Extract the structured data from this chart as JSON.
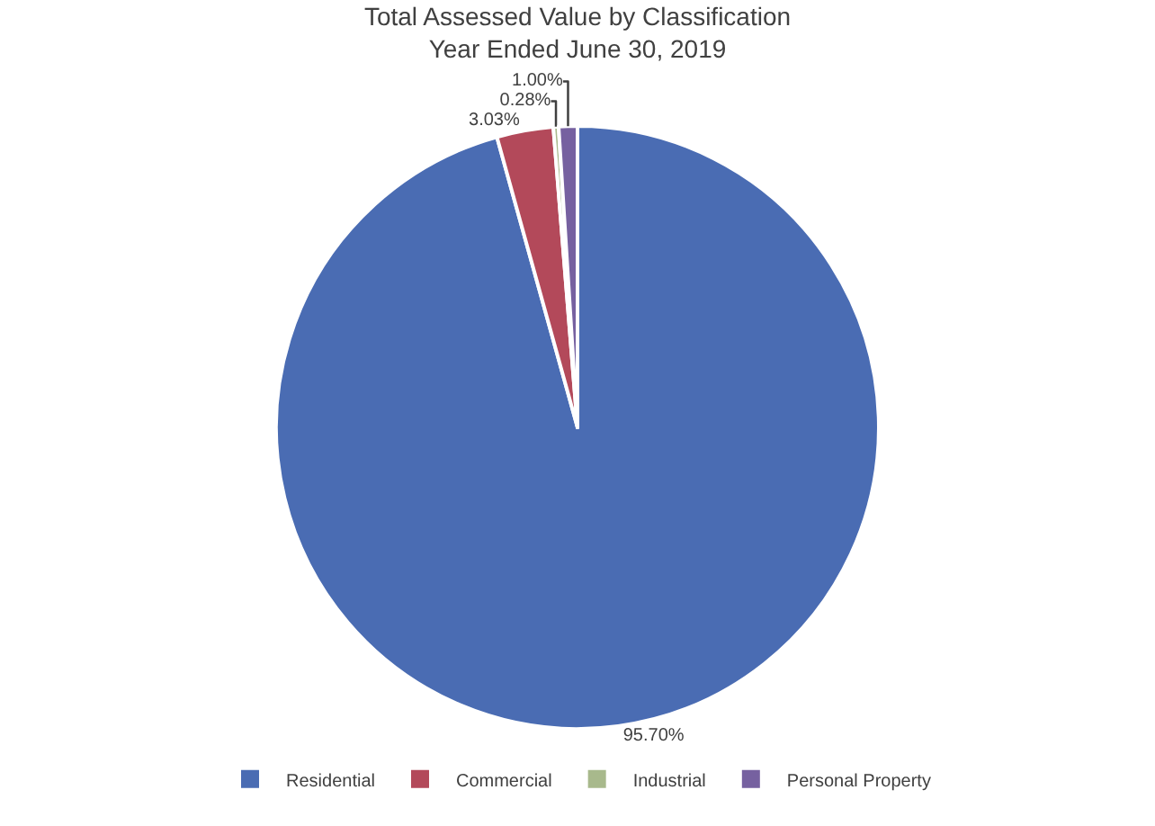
{
  "chart_data": {
    "type": "pie",
    "title": "Total Assessed Value by Classification\nYear Ended June 30, 2019",
    "categories": [
      "Residential",
      "Commercial",
      "Industrial",
      "Personal Property"
    ],
    "values": [
      95.7,
      3.03,
      0.28,
      1.0
    ],
    "value_labels": [
      "95.70%",
      "3.03%",
      "0.28%",
      "1.00%"
    ],
    "colors": [
      "#4a6cb3",
      "#b3495a",
      "#a8b98c",
      "#7661a0"
    ],
    "legend": "bottom"
  }
}
